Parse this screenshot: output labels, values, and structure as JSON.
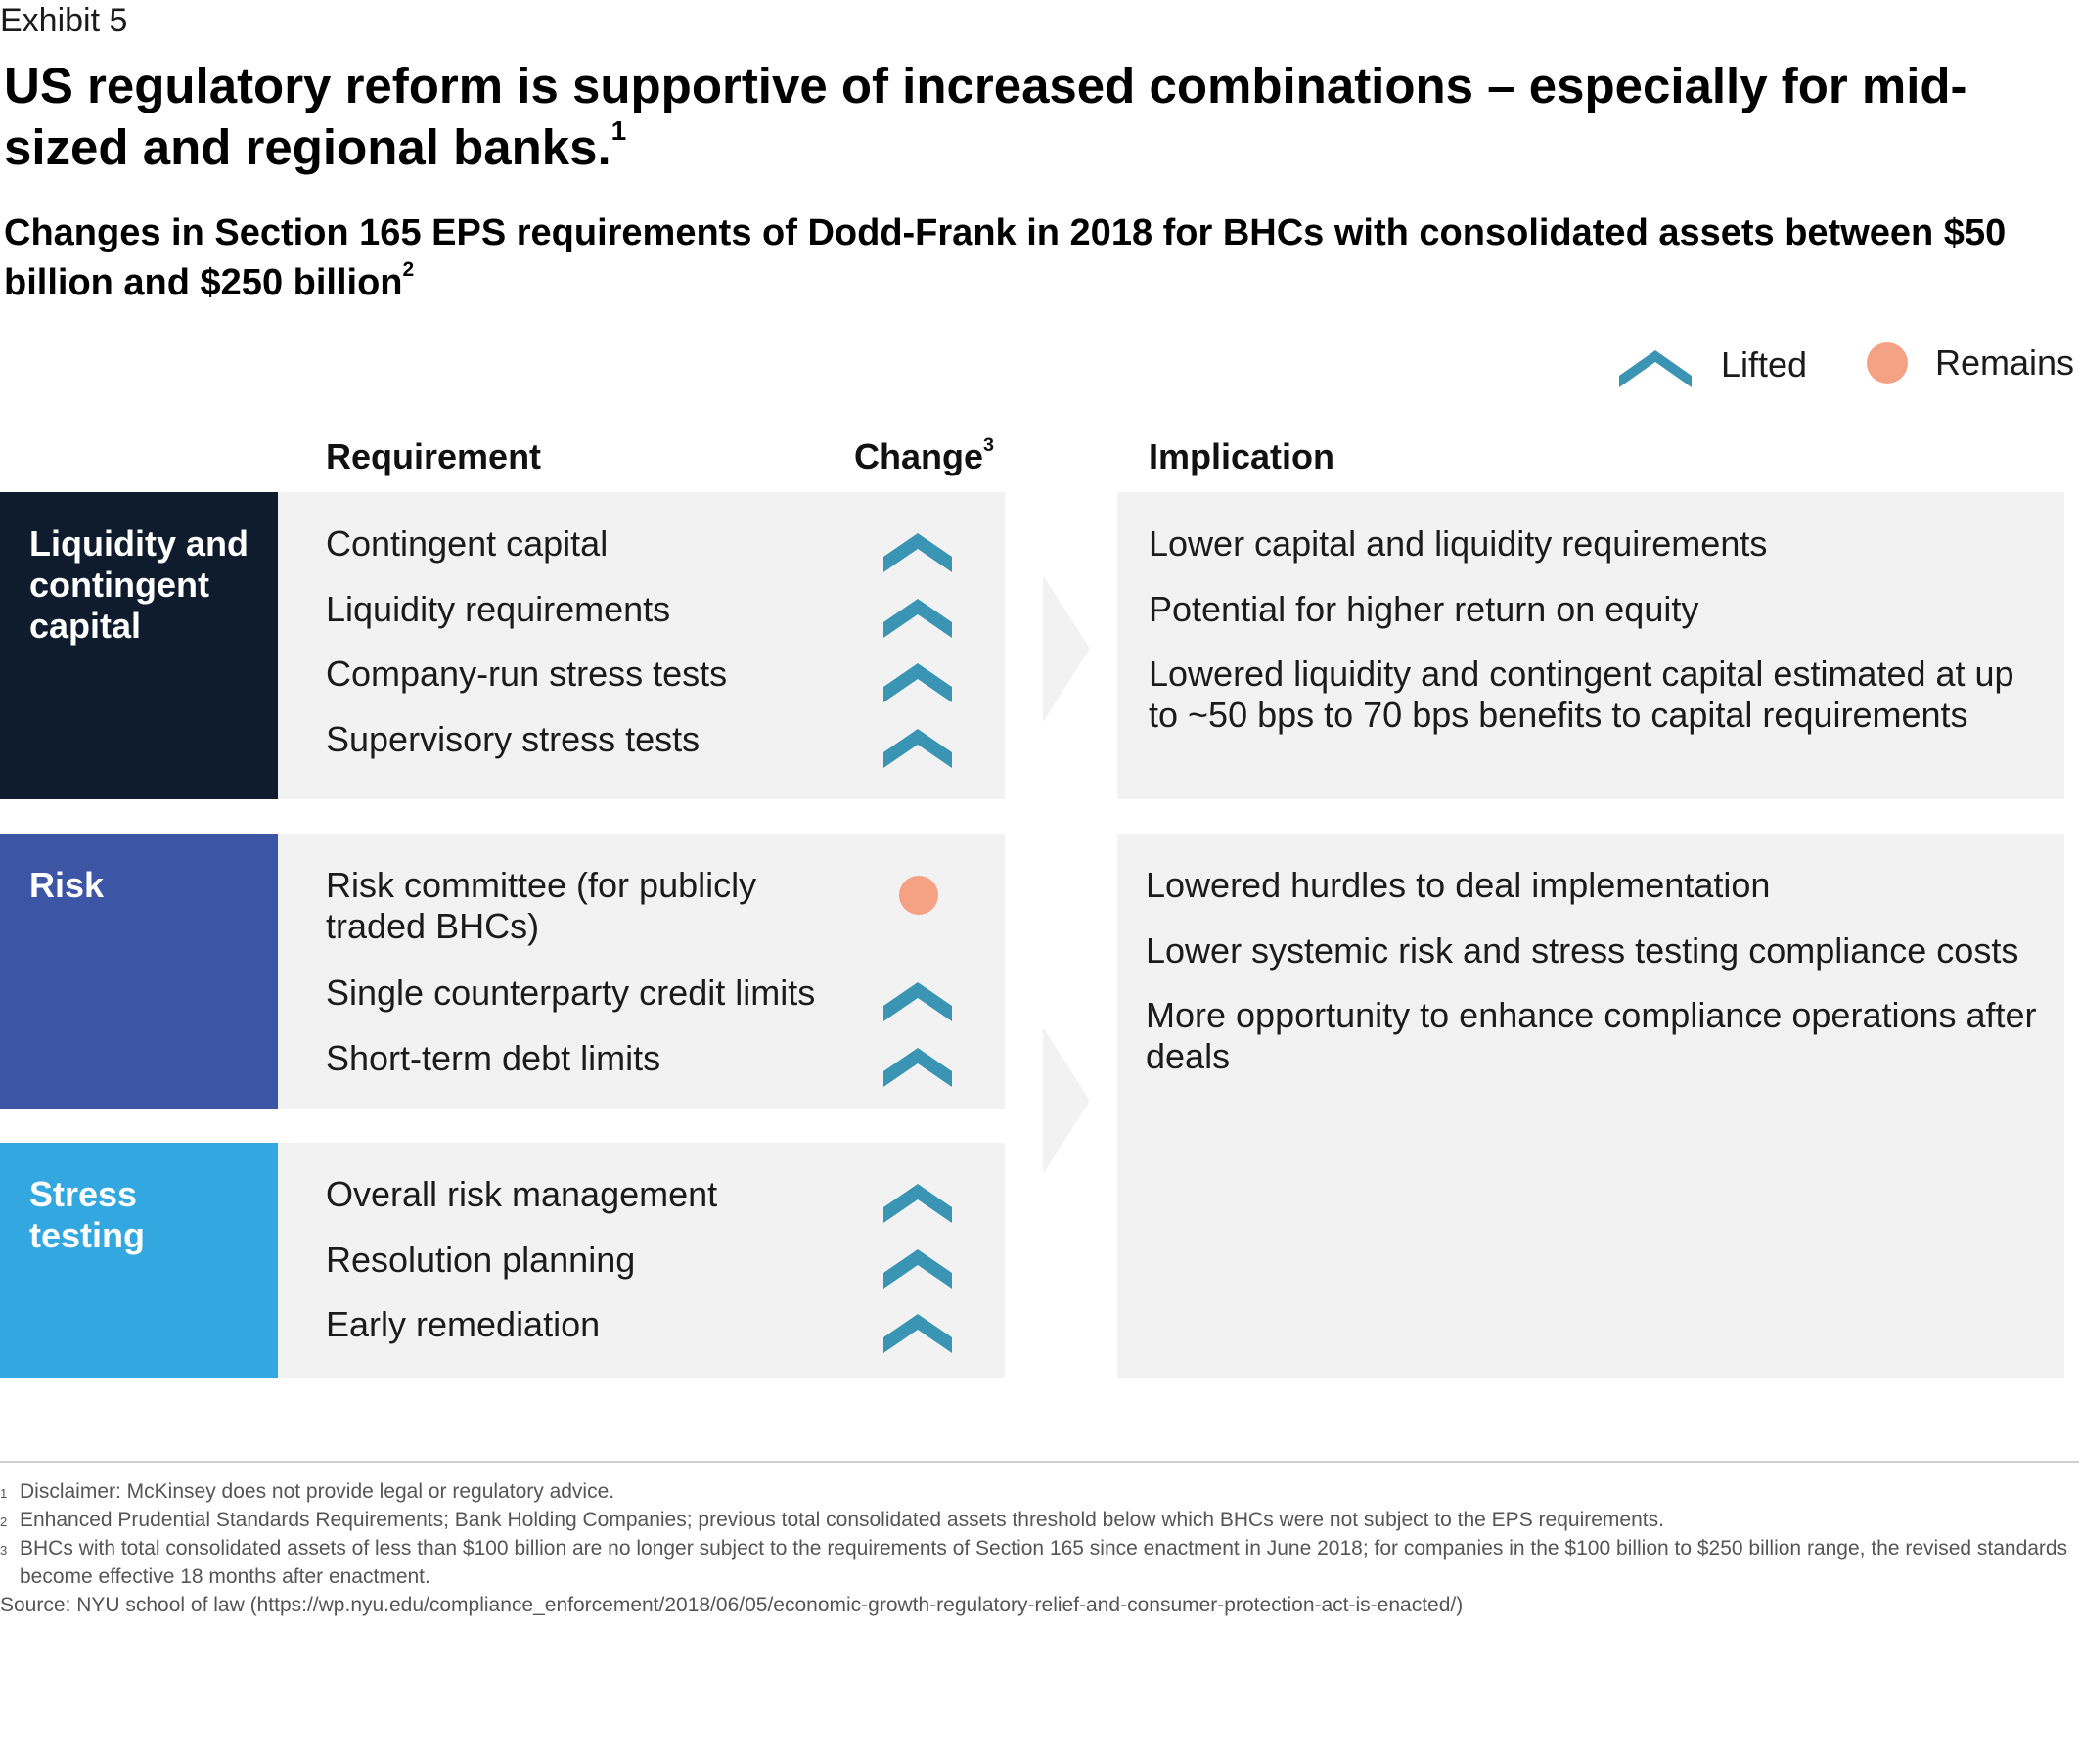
{
  "header": {
    "exhibit": "Exhibit 5",
    "title": "US regulatory reform is supportive of increased combinations – especially for mid-sized and regional banks.",
    "title_note": "1",
    "subtitle": "Changes in Section 165 EPS requirements of Dodd-Frank in 2018 for BHCs with consolidated assets between $50 billion and $250 billion",
    "subtitle_note": "2"
  },
  "legend": {
    "lifted": {
      "label": "Lifted",
      "icon": "chevron-up-icon",
      "color": "#3a95b5"
    },
    "remains": {
      "label": "Remains",
      "icon": "circle-icon",
      "color": "#f4a184"
    }
  },
  "columns": {
    "requirement": "Requirement",
    "change": "Change",
    "change_note": "3",
    "implication": "Implication"
  },
  "groups": [
    {
      "label": "Liquidity and contingent capital",
      "color": "#0f1c2e",
      "requirements": [
        {
          "text": "Contingent capital",
          "change": "lifted"
        },
        {
          "text": "Liquidity requirements",
          "change": "lifted"
        },
        {
          "text": "Company-run stress tests",
          "change": "lifted"
        },
        {
          "text": "Supervisory stress tests",
          "change": "lifted"
        }
      ]
    },
    {
      "label": "Risk",
      "color": "#3c55a5",
      "requirements": [
        {
          "text": "Risk committee (for publicly traded BHCs)",
          "change": "remains"
        },
        {
          "text": "Single counterparty credit limits",
          "change": "lifted"
        },
        {
          "text": "Short-term debt limits",
          "change": "lifted"
        }
      ]
    },
    {
      "label": "Stress testing",
      "color": "#33a8e0",
      "requirements": [
        {
          "text": "Overall risk management",
          "change": "lifted"
        },
        {
          "text": "Resolution planning",
          "change": "lifted"
        },
        {
          "text": "Early remediation",
          "change": "lifted"
        }
      ]
    }
  ],
  "implications": [
    {
      "items": [
        "Lower capital and liquidity requirements",
        "Potential for higher return on equity",
        "Lowered liquidity and contingent capital estimated at up to ~50 bps to 70 bps benefits to capital requirements"
      ]
    },
    {
      "items": [
        "Lowered hurdles to deal implementation",
        "Lower systemic risk and stress testing compliance costs",
        "More opportunity to enhance compliance operations after deals"
      ]
    }
  ],
  "footnotes": [
    {
      "num": "1",
      "text": "Disclaimer: McKinsey does not provide legal or regulatory advice."
    },
    {
      "num": "2",
      "text": "Enhanced Prudential Standards Requirements; Bank Holding Companies; previous total consolidated assets threshold below which BHCs were not subject to the EPS requirements."
    },
    {
      "num": "3",
      "text": "BHCs with total consolidated assets of less than $100 billion are no longer subject to the requirements of Section 165 since enactment in June 2018; for companies in the $100 billion to $250 billion range, the revised standards become effective 18 months after enactment."
    }
  ],
  "source": "Source: NYU school of law (https://wp.nyu.edu/compliance_enforcement/2018/06/05/economic-growth-regulatory-relief-and-consumer-protection-act-is-enacted/)"
}
